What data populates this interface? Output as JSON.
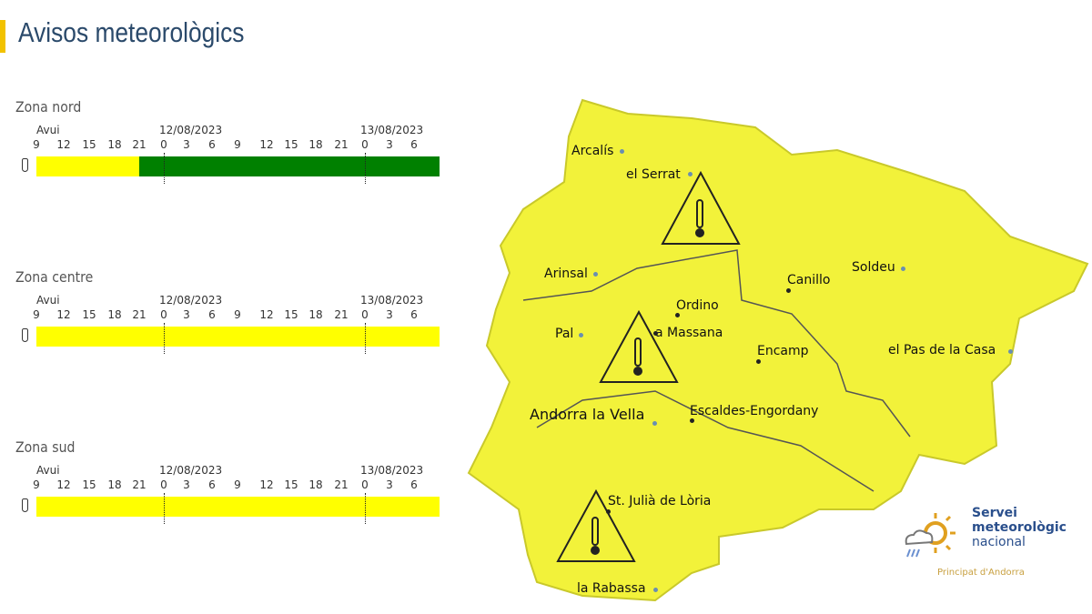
{
  "title": "Avisos meteorològics",
  "accent_color": "#f2c200",
  "timeline": {
    "today_label": "Avui",
    "date1": "12/08/2023",
    "date2": "13/08/2023",
    "hours": [
      "9",
      "12",
      "15",
      "18",
      "21",
      "0",
      "3",
      "6",
      "9",
      "12",
      "15",
      "18",
      "21",
      "0",
      "3",
      "6"
    ]
  },
  "zones": [
    {
      "name": "Zona nord",
      "icon": "thermometer-icon",
      "segments": [
        {
          "from": "9",
          "to": "21",
          "color": "#ffff00"
        },
        {
          "from": "21",
          "to": "end",
          "color": "#008000"
        }
      ]
    },
    {
      "name": "Zona centre",
      "icon": "thermometer-icon",
      "segments": [
        {
          "from": "9",
          "to": "end",
          "color": "#ffff00"
        }
      ]
    },
    {
      "name": "Zona sud",
      "icon": "thermometer-icon",
      "segments": [
        {
          "from": "9",
          "to": "end",
          "color": "#ffff00"
        }
      ]
    }
  ],
  "map": {
    "fill": "#f5f53a",
    "warning_icon": "high-temperature-warning-icon",
    "places": [
      "Arcalís",
      "el Serrat",
      "Arinsal",
      "Canillo",
      "Soldeu",
      "Ordino",
      "Pal",
      "a Massana",
      "Encamp",
      "el Pas de la Casa",
      "Andorra la Vella",
      "Escaldes-Engordany",
      "St. Julià de Lòria",
      "la Rabassa"
    ]
  },
  "logo": {
    "line1": "Servei",
    "line2": "meteorològic",
    "line3": "nacional",
    "line4": "Principat d'Andorra"
  }
}
